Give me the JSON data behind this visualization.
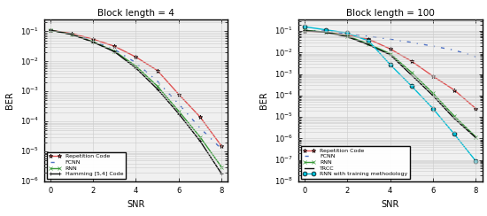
{
  "left_title": "Block length = 4",
  "right_title": "Block length = 100",
  "xlabel_left": "SNR",
  "xlabel_right": "SNR",
  "ylabel": "BER",
  "left": {
    "snr": [
      0,
      1,
      2,
      3,
      4,
      5,
      6,
      7,
      8
    ],
    "repetition": [
      0.11,
      0.085,
      0.055,
      0.032,
      0.014,
      0.005,
      0.0008,
      0.00014,
      1.5e-05
    ],
    "fcnn": [
      0.11,
      0.082,
      0.048,
      0.025,
      0.009,
      0.0022,
      0.00038,
      6e-05,
      1.2e-05
    ],
    "rnn": [
      0.11,
      0.08,
      0.045,
      0.022,
      0.007,
      0.0015,
      0.00022,
      3e-05,
      3e-06
    ],
    "hamming": [
      0.11,
      0.079,
      0.044,
      0.021,
      0.006,
      0.0012,
      0.00018,
      2.2e-05,
      1.8e-06
    ]
  },
  "right": {
    "snr": [
      0,
      1,
      2,
      3,
      4,
      5,
      6,
      7,
      8
    ],
    "repetition": [
      0.1,
      0.09,
      0.065,
      0.042,
      0.015,
      0.004,
      0.0008,
      0.00018,
      2.5e-05
    ],
    "fcnn": [
      0.11,
      0.1,
      0.075,
      0.058,
      0.042,
      0.03,
      0.02,
      0.013,
      0.0065
    ],
    "rnn": [
      0.11,
      0.09,
      0.06,
      0.025,
      0.009,
      0.0012,
      0.00013,
      1.1e-05,
      1.2e-06
    ],
    "trcc": [
      0.105,
      0.088,
      0.055,
      0.023,
      0.008,
      0.0009,
      0.0001,
      8.5e-06,
      1.1e-06
    ],
    "rnn_train": [
      0.16,
      0.115,
      0.082,
      0.035,
      0.0028,
      0.00028,
      2.5e-05,
      1.6e-06,
      9e-08
    ]
  },
  "colors": {
    "repetition": "#e05555",
    "fcnn": "#4f72c4",
    "rnn": "#3a9a3a",
    "hamming": "#111111",
    "trcc": "#111111",
    "rnn_train": "#00bcd4"
  },
  "ylim_left": [
    1e-06,
    0.25
  ],
  "ylim_right": [
    1e-08,
    0.35
  ],
  "xlim_left": [
    -0.3,
    8.3
  ],
  "xlim_right": [
    -0.3,
    8.3
  ],
  "xticks": [
    0,
    2,
    4,
    6,
    8
  ]
}
